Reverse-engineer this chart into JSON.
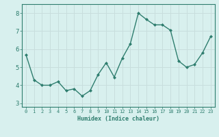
{
  "x": [
    0,
    1,
    2,
    3,
    4,
    5,
    6,
    7,
    8,
    9,
    10,
    11,
    12,
    13,
    14,
    15,
    16,
    17,
    18,
    19,
    20,
    21,
    22,
    23
  ],
  "y": [
    5.7,
    4.3,
    4.0,
    4.0,
    4.2,
    3.7,
    3.8,
    3.4,
    3.7,
    4.6,
    5.25,
    4.45,
    5.5,
    6.3,
    8.0,
    7.65,
    7.35,
    7.35,
    7.05,
    5.35,
    5.0,
    5.15,
    5.8,
    6.7
  ],
  "line_color": "#2e7d6e",
  "marker": "D",
  "markersize": 2.0,
  "linewidth": 1.0,
  "xlabel": "Humidex (Indice chaleur)",
  "xlim": [
    -0.5,
    23.5
  ],
  "ylim": [
    2.8,
    8.5
  ],
  "yticks": [
    3,
    4,
    5,
    6,
    7,
    8
  ],
  "xticks": [
    0,
    1,
    2,
    3,
    4,
    5,
    6,
    7,
    8,
    9,
    10,
    11,
    12,
    13,
    14,
    15,
    16,
    17,
    18,
    19,
    20,
    21,
    22,
    23
  ],
  "bg_color": "#d8f0ee",
  "grid_color": "#c8dedd",
  "tick_color": "#2e7d6e",
  "label_color": "#2e7d6e",
  "spine_color": "#2e7d6e"
}
